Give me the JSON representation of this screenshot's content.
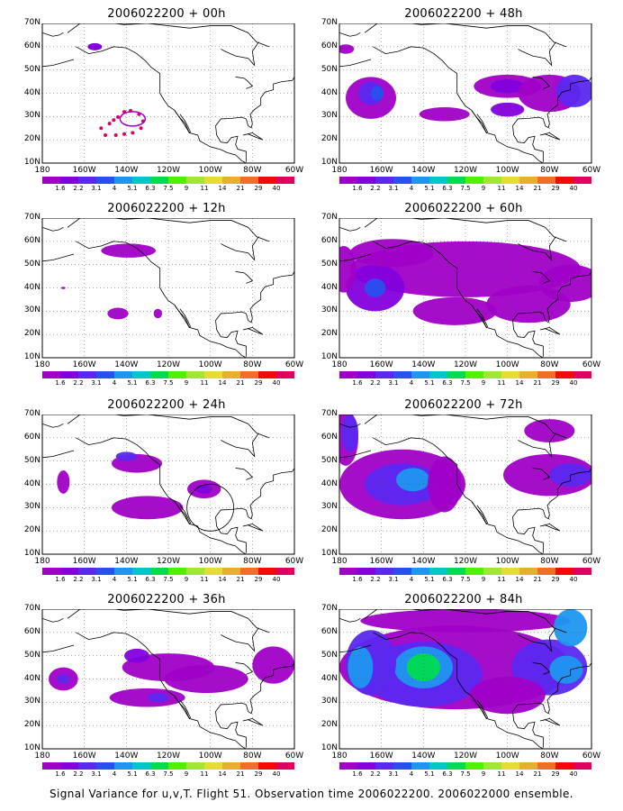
{
  "footer": "Signal Variance for u,v,T. Flight 51. Observation time 2006022200. 2006022000 ensemble.",
  "y_labels": [
    "70N",
    "60N",
    "50N",
    "40N",
    "30N",
    "20N",
    "10N"
  ],
  "x_labels": [
    "180",
    "160W",
    "140W",
    "120W",
    "100W",
    "80W",
    "60W"
  ],
  "colorbar_labels": [
    "1.6",
    "2.2",
    "3.1",
    "4",
    "5.1",
    "6.3",
    "7.5",
    "9",
    "11",
    "14",
    "21",
    "29",
    "40"
  ],
  "colorbar_colors": [
    "#a000c8",
    "#8200dc",
    "#5a28f0",
    "#2850f0",
    "#1e96f0",
    "#00c8c8",
    "#00dc50",
    "#50f000",
    "#a0e632",
    "#e6dc32",
    "#e6af2d",
    "#f06e28",
    "#f00a0a",
    "#e00060"
  ],
  "panels": [
    {
      "id": "p00",
      "title": "2006022200 + 00h"
    },
    {
      "id": "p48",
      "title": "2006022200 + 48h"
    },
    {
      "id": "p12",
      "title": "2006022200 + 12h"
    },
    {
      "id": "p60",
      "title": "2006022200 + 60h"
    },
    {
      "id": "p24",
      "title": "2006022200 + 24h"
    },
    {
      "id": "p72",
      "title": "2006022200 + 72h"
    },
    {
      "id": "p36",
      "title": "2006022200 + 36h"
    },
    {
      "id": "p84",
      "title": "2006022200 + 84h"
    }
  ],
  "legend_colors": {
    "purple": "#a000c8",
    "violet": "#8200dc",
    "indigo": "#5a28f0",
    "blue": "#2850f0",
    "cyan": "#1e96f0",
    "teal": "#00c8c8",
    "green": "#00dc50",
    "flight_track": "#e00060"
  }
}
